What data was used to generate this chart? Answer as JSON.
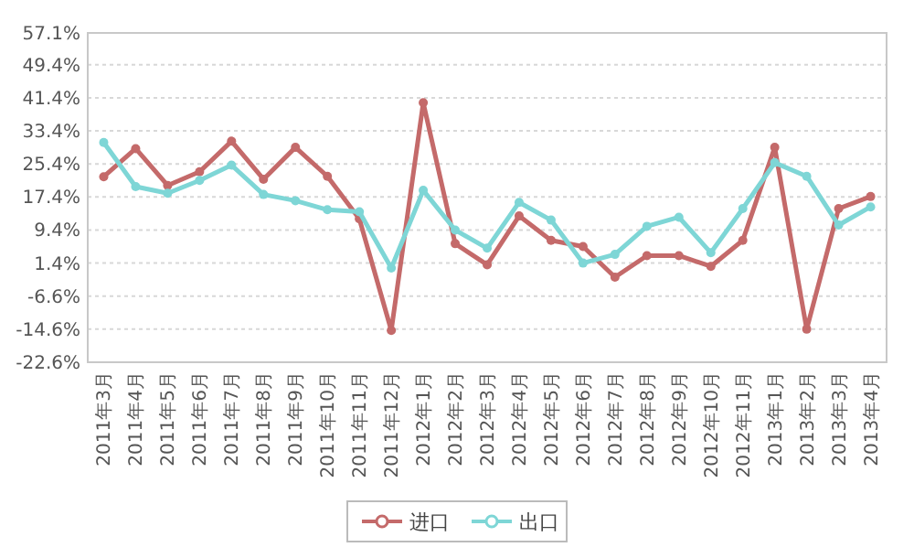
{
  "chart_data": {
    "type": "line",
    "categories": [
      "2011年3月",
      "2011年4月",
      "2011年5月",
      "2011年6月",
      "2011年7月",
      "2011年8月",
      "2011年9月",
      "2011年10月",
      "2011年11月",
      "2011年12月",
      "2012年1月",
      "2012年2月",
      "2012年3月",
      "2012年4月",
      "2012年5月",
      "2012年6月",
      "2012年7月",
      "2012年8月",
      "2012年9月",
      "2012年10月",
      "2012年11月",
      "2013年1月",
      "2013年2月",
      "2013年3月",
      "2013年4月"
    ],
    "series": [
      {
        "name": "进口",
        "color": "#c46a6a",
        "values": [
          22.3,
          29.1,
          20.2,
          23.5,
          30.9,
          21.7,
          29.4,
          22.4,
          12.1,
          -14.9,
          40.2,
          6.1,
          1.0,
          12.8,
          6.9,
          5.4,
          -2.0,
          3.2,
          3.2,
          0.6,
          6.9,
          29.4,
          -14.6,
          14.6,
          17.5
        ]
      },
      {
        "name": "出口",
        "color": "#7ed6d6",
        "values": [
          30.6,
          19.9,
          18.3,
          21.4,
          25.1,
          18.0,
          16.5,
          14.3,
          13.8,
          0.2,
          19.0,
          9.4,
          5.0,
          16.1,
          11.8,
          1.4,
          3.5,
          10.3,
          12.5,
          3.9,
          14.6,
          25.7,
          22.4,
          10.6,
          15.0
        ]
      }
    ],
    "ylim": [
      -22.6,
      57.1
    ],
    "yticks": [
      {
        "value": 57.1,
        "label": "57.1%"
      },
      {
        "value": 49.4,
        "label": "49.4%"
      },
      {
        "value": 41.4,
        "label": "41.4%"
      },
      {
        "value": 33.4,
        "label": "33.4%"
      },
      {
        "value": 25.4,
        "label": "25.4%"
      },
      {
        "value": 17.4,
        "label": "17.4%"
      },
      {
        "value": 9.4,
        "label": "9.4%"
      },
      {
        "value": 1.4,
        "label": "1.4%"
      },
      {
        "value": -6.6,
        "label": "-6.6%"
      },
      {
        "value": -14.6,
        "label": "-14.6%"
      },
      {
        "value": -22.6,
        "label": "-22.6%"
      }
    ],
    "grid": "y",
    "legend": "bottom",
    "marker": "circle",
    "line_style": "solid"
  }
}
